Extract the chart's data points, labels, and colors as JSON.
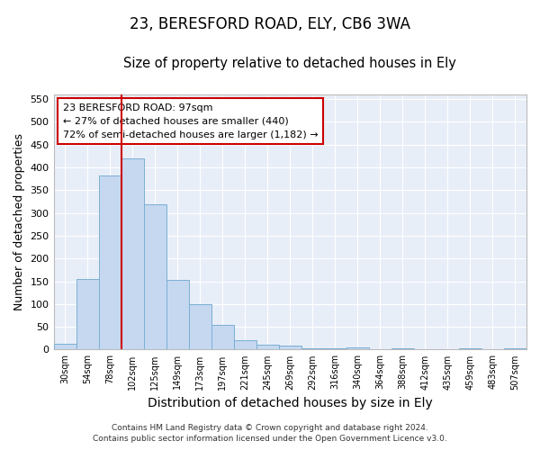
{
  "title1": "23, BERESFORD ROAD, ELY, CB6 3WA",
  "title2": "Size of property relative to detached houses in Ely",
  "xlabel": "Distribution of detached houses by size in Ely",
  "ylabel": "Number of detached properties",
  "categories": [
    "30sqm",
    "54sqm",
    "78sqm",
    "102sqm",
    "125sqm",
    "149sqm",
    "173sqm",
    "197sqm",
    "221sqm",
    "245sqm",
    "269sqm",
    "292sqm",
    "316sqm",
    "340sqm",
    "364sqm",
    "388sqm",
    "412sqm",
    "435sqm",
    "459sqm",
    "483sqm",
    "507sqm"
  ],
  "values": [
    13,
    155,
    382,
    420,
    320,
    153,
    100,
    55,
    20,
    10,
    8,
    3,
    2,
    5,
    1,
    2,
    1,
    1,
    2,
    1,
    3
  ],
  "bar_color": "#c5d8f0",
  "bar_edge_color": "#7bafd4",
  "vline_color": "#cc0000",
  "annotation_text": "23 BERESFORD ROAD: 97sqm\n← 27% of detached houses are smaller (440)\n72% of semi-detached houses are larger (1,182) →",
  "annotation_box_color": "#ffffff",
  "annotation_box_edge": "#cc0000",
  "ylim": [
    0,
    560
  ],
  "yticks": [
    0,
    50,
    100,
    150,
    200,
    250,
    300,
    350,
    400,
    450,
    500,
    550
  ],
  "footer": "Contains HM Land Registry data © Crown copyright and database right 2024.\nContains public sector information licensed under the Open Government Licence v3.0.",
  "fig_bg_color": "#ffffff",
  "plot_bg_color": "#e8eef8",
  "grid_color": "#ffffff",
  "title1_fontsize": 12,
  "title2_fontsize": 10.5,
  "xlabel_fontsize": 10,
  "ylabel_fontsize": 9,
  "footer_fontsize": 6.5
}
